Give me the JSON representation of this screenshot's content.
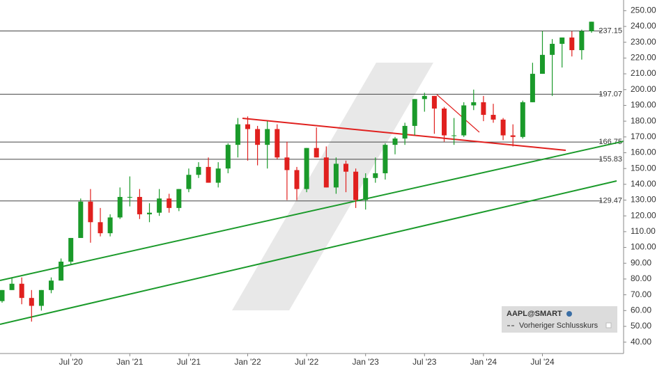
{
  "chart_data": {
    "type": "candlestick",
    "legend": {
      "title": "AAPL@SMART",
      "entry": "Vorheriger Schlusskurs"
    },
    "categories": [
      null,
      null,
      null,
      null,
      null,
      null,
      null,
      "Jul '20",
      null,
      null,
      null,
      null,
      null,
      "Jan '21",
      null,
      null,
      null,
      null,
      null,
      "Jul '21",
      null,
      null,
      null,
      null,
      null,
      "Jan '22",
      null,
      null,
      null,
      null,
      null,
      "Jul '22",
      null,
      null,
      null,
      null,
      null,
      "Jan '23",
      null,
      null,
      null,
      null,
      null,
      "Jul '23",
      null,
      null,
      null,
      null,
      null,
      "Jan '24",
      null,
      null,
      null,
      null,
      null,
      "Jul '24",
      null,
      null,
      null,
      null,
      null
    ],
    "open": [
      66,
      73,
      77,
      68,
      63,
      73,
      79,
      91,
      106,
      129,
      116,
      109,
      119,
      132,
      132,
      121,
      122,
      131,
      125,
      137,
      146,
      151,
      141,
      150,
      165,
      178,
      175,
      165,
      175,
      157,
      149,
      137,
      163,
      157,
      138,
      153,
      148,
      130,
      144,
      147,
      165,
      169,
      177,
      194,
      196,
      188,
      171,
      171,
      190,
      192,
      184,
      181,
      171,
      170,
      192,
      210,
      222,
      229,
      233,
      225,
      237
    ],
    "high": [
      73,
      81,
      81,
      73,
      73,
      81,
      93,
      106,
      131,
      137,
      125,
      121,
      138,
      145,
      137,
      128,
      137,
      134,
      137,
      150,
      154,
      157,
      154,
      166,
      182,
      183,
      177,
      180,
      178,
      167,
      151,
      163,
      176,
      164,
      157,
      155,
      150,
      147,
      157,
      166,
      170,
      179,
      194,
      198,
      196,
      189,
      182,
      192,
      200,
      196,
      191,
      182,
      178,
      193,
      217,
      237,
      232,
      233,
      237,
      238,
      243
    ],
    "low": [
      65,
      73,
      64,
      53,
      60,
      71,
      79,
      89,
      107,
      103,
      107,
      107,
      118,
      126,
      118,
      116,
      120,
      122,
      123,
      135,
      144,
      141,
      138,
      147,
      157,
      155,
      152,
      150,
      156,
      130,
      130,
      135,
      157,
      138,
      134,
      135,
      125,
      124,
      141,
      143,
      159,
      165,
      171,
      186,
      172,
      167,
      165,
      170,
      187,
      180,
      179,
      168,
      164,
      169,
      192,
      210,
      196,
      214,
      221,
      219,
      236
    ],
    "close": [
      73,
      77,
      68,
      63,
      73,
      79,
      91,
      106,
      129,
      116,
      109,
      119,
      132,
      132,
      121,
      122,
      131,
      125,
      137,
      146,
      151,
      141,
      150,
      165,
      178,
      175,
      165,
      175,
      157,
      149,
      137,
      163,
      157,
      138,
      153,
      148,
      130,
      144,
      147,
      165,
      169,
      177,
      194,
      196,
      188,
      171,
      171,
      190,
      192,
      184,
      181,
      171,
      170,
      192,
      210,
      222,
      229,
      233,
      225,
      237,
      243
    ],
    "up_color": "#1a9a2a",
    "down_color": "#e0201e",
    "levels": [
      237.15,
      197.07,
      166.75,
      155.83,
      129.47
    ],
    "ylim": [
      35,
      255
    ],
    "yticks": [
      {
        "value": 40,
        "label": "40.00"
      },
      {
        "value": 50,
        "label": "50.00"
      },
      {
        "value": 60,
        "label": "60.00"
      },
      {
        "value": 70,
        "label": "70.00"
      },
      {
        "value": 80,
        "label": "80.00"
      },
      {
        "value": 90,
        "label": "90.00"
      },
      {
        "value": 100,
        "label": "100.00"
      },
      {
        "value": 110,
        "label": "110.00"
      },
      {
        "value": 120,
        "label": "120.00"
      },
      {
        "value": 130,
        "label": "130.00"
      },
      {
        "value": 140,
        "label": "140.00"
      },
      {
        "value": 150,
        "label": "150.00"
      },
      {
        "value": 160,
        "label": "160.00"
      },
      {
        "value": 170,
        "label": "170.00"
      },
      {
        "value": 180,
        "label": "180.00"
      },
      {
        "value": 190,
        "label": "190.00"
      },
      {
        "value": 200,
        "label": "200.00"
      },
      {
        "value": 210,
        "label": "210.00"
      },
      {
        "value": 220,
        "label": "220.00"
      },
      {
        "value": 230,
        "label": "230.00"
      },
      {
        "value": 240,
        "label": "240.00"
      },
      {
        "value": 250,
        "label": "250.00"
      }
    ]
  }
}
